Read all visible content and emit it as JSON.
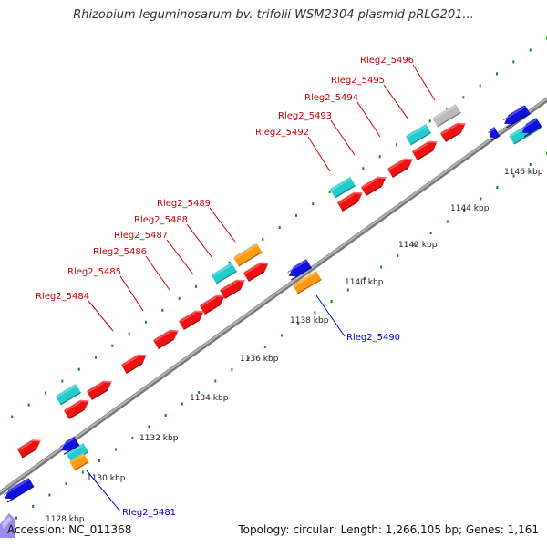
{
  "title": "Rhizobium leguminosarum bv. trifolii WSM2304 plasmid pRLG201...",
  "footer": {
    "accession": "Accession: NC_011368",
    "summary": "Topology: circular; Length: 1,266,105 bp; Genes: 1,161"
  },
  "colors": {
    "backbone": "#999999",
    "tick_dot": "#0f8c0f",
    "plus_cds": "#ee1111",
    "minus_cds": "#1111dd",
    "other_gene": "#22cccc",
    "rna_gene": "#ff9911",
    "pseudo_gene": "#bbbbbb",
    "plus_label": "#cc0000",
    "minus_label": "#0000cc",
    "selection_marker": "#9988ee"
  },
  "scale_labels": [
    "1128 kbp",
    "1130 kbp",
    "1132 kbp",
    "1134 kbp",
    "1136 kbp",
    "1138 kbp",
    "1140 kbp",
    "1142 kbp",
    "1144 kbp",
    "1146 kbp"
  ],
  "plus_strand_labels": [
    "Rleg2_5484",
    "Rleg2_5485",
    "Rleg2_5486",
    "Rleg2_5487",
    "Rleg2_5488",
    "Rleg2_5489",
    "Rleg2_5492",
    "Rleg2_5493",
    "Rleg2_5494",
    "Rleg2_5495",
    "Rleg2_5496"
  ],
  "minus_strand_labels": [
    "Rleg2_5490",
    "Rleg2_5481"
  ],
  "legend_icon": "selection-arrow-icon"
}
